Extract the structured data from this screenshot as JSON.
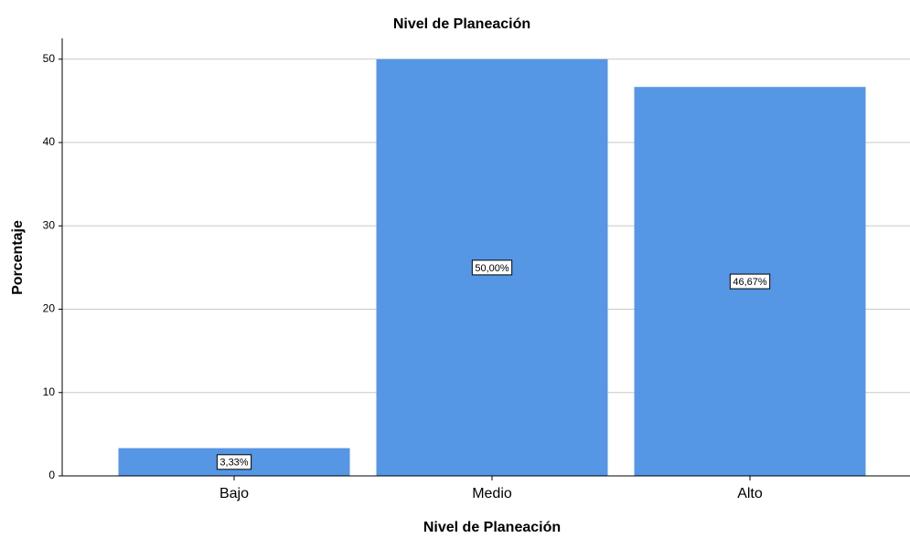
{
  "chart_data": {
    "type": "bar",
    "title": "Nivel de Planeación",
    "x_label": "Nivel de Planeación",
    "y_label": "Porcentaje",
    "categories": [
      "Bajo",
      "Medio",
      "Alto"
    ],
    "values": [
      3.33,
      50.0,
      46.67
    ],
    "value_labels": [
      "3,33%",
      "50,00%",
      "46,67%"
    ],
    "color": "#5596e5",
    "ylim": [
      0,
      52.5
    ],
    "yticks": [
      0,
      10,
      20,
      30,
      40,
      50
    ],
    "grid": true
  }
}
